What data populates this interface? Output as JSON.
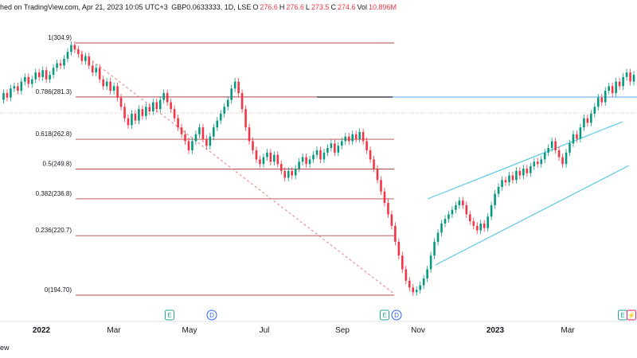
{
  "header": {
    "published": "hed on TradingView.com, Apr 21, 2023 10:05 UTC+3",
    "symbol": "GBP0.0633333, 1D, LSE",
    "open_label": "O",
    "open": "276.6",
    "high_label": "H",
    "high": "276.6",
    "low_label": "L",
    "low": "273.5",
    "close_label": "C",
    "close": "274.6",
    "vol_label": "Vol",
    "vol": "10.896M"
  },
  "footer": {
    "label": "ew"
  },
  "chart_data": {
    "type": "candlestick",
    "ylim": [
      190,
      312
    ],
    "fib_levels": [
      {
        "label": "1(304.9)",
        "value": 304.9
      },
      {
        "label": "0.786(281.3)",
        "value": 281.3
      },
      {
        "label": "0.618(262.8)",
        "value": 262.8
      },
      {
        "label": "0.5(249.8)",
        "value": 249.8
      },
      {
        "label": "0.382(236.8)",
        "value": 236.8
      },
      {
        "label": "0.236(220.7)",
        "value": 220.7
      },
      {
        "label": "0(194.70)",
        "value": 194.7
      }
    ],
    "x_ticks": [
      {
        "label": "2022",
        "bold": true
      },
      {
        "label": "Mar",
        "bold": false
      },
      {
        "label": "May",
        "bold": false
      },
      {
        "label": "Jul",
        "bold": false
      },
      {
        "label": "Sep",
        "bold": false
      },
      {
        "label": "Nov",
        "bold": false
      },
      {
        "label": "2023",
        "bold": true
      },
      {
        "label": "Mar",
        "bold": false
      }
    ],
    "event_markers": [
      {
        "text": "E",
        "kind": "earnings"
      },
      {
        "text": "D",
        "kind": "dividend"
      },
      {
        "text": "E",
        "kind": "earnings"
      },
      {
        "text": "D",
        "kind": "dividend"
      },
      {
        "text": "E",
        "kind": "earnings"
      },
      {
        "text": "⚡",
        "kind": "split"
      }
    ],
    "candles": [
      280,
      283,
      281,
      285,
      286,
      284,
      288,
      290,
      287,
      289,
      292,
      290,
      293,
      289,
      291,
      294,
      296,
      295,
      298,
      301,
      304,
      302,
      300,
      297,
      299,
      295,
      292,
      294,
      289,
      286,
      288,
      284,
      286,
      281,
      277,
      272,
      269,
      274,
      271,
      276,
      273,
      277,
      275,
      279,
      276,
      280,
      283,
      279,
      276,
      272,
      268,
      265,
      262,
      258,
      262,
      265,
      268,
      263,
      260,
      264,
      268,
      271,
      274,
      277,
      280,
      285,
      288,
      283,
      276,
      268,
      262,
      258,
      254,
      252,
      255,
      257,
      253,
      256,
      252,
      249,
      246,
      249,
      247,
      250,
      253,
      255,
      252,
      254,
      256,
      258,
      254,
      257,
      259,
      261,
      257,
      260,
      262,
      264,
      262,
      265,
      263,
      266,
      262,
      258,
      254,
      250,
      245,
      240,
      235,
      230,
      225,
      218,
      212,
      206,
      201,
      198,
      196,
      197,
      199,
      202,
      206,
      212,
      218,
      222,
      226,
      228,
      230,
      232,
      234,
      236,
      234,
      230,
      227,
      225,
      223,
      226,
      224,
      229,
      234,
      239,
      242,
      245,
      244,
      247,
      245,
      249,
      247,
      250,
      248,
      251,
      253,
      252,
      254,
      257,
      259,
      262,
      258,
      255,
      252,
      257,
      261,
      265,
      263,
      268,
      272,
      270,
      274,
      277,
      281,
      279,
      284,
      286,
      283,
      288,
      286,
      290,
      292,
      288,
      291
    ]
  }
}
